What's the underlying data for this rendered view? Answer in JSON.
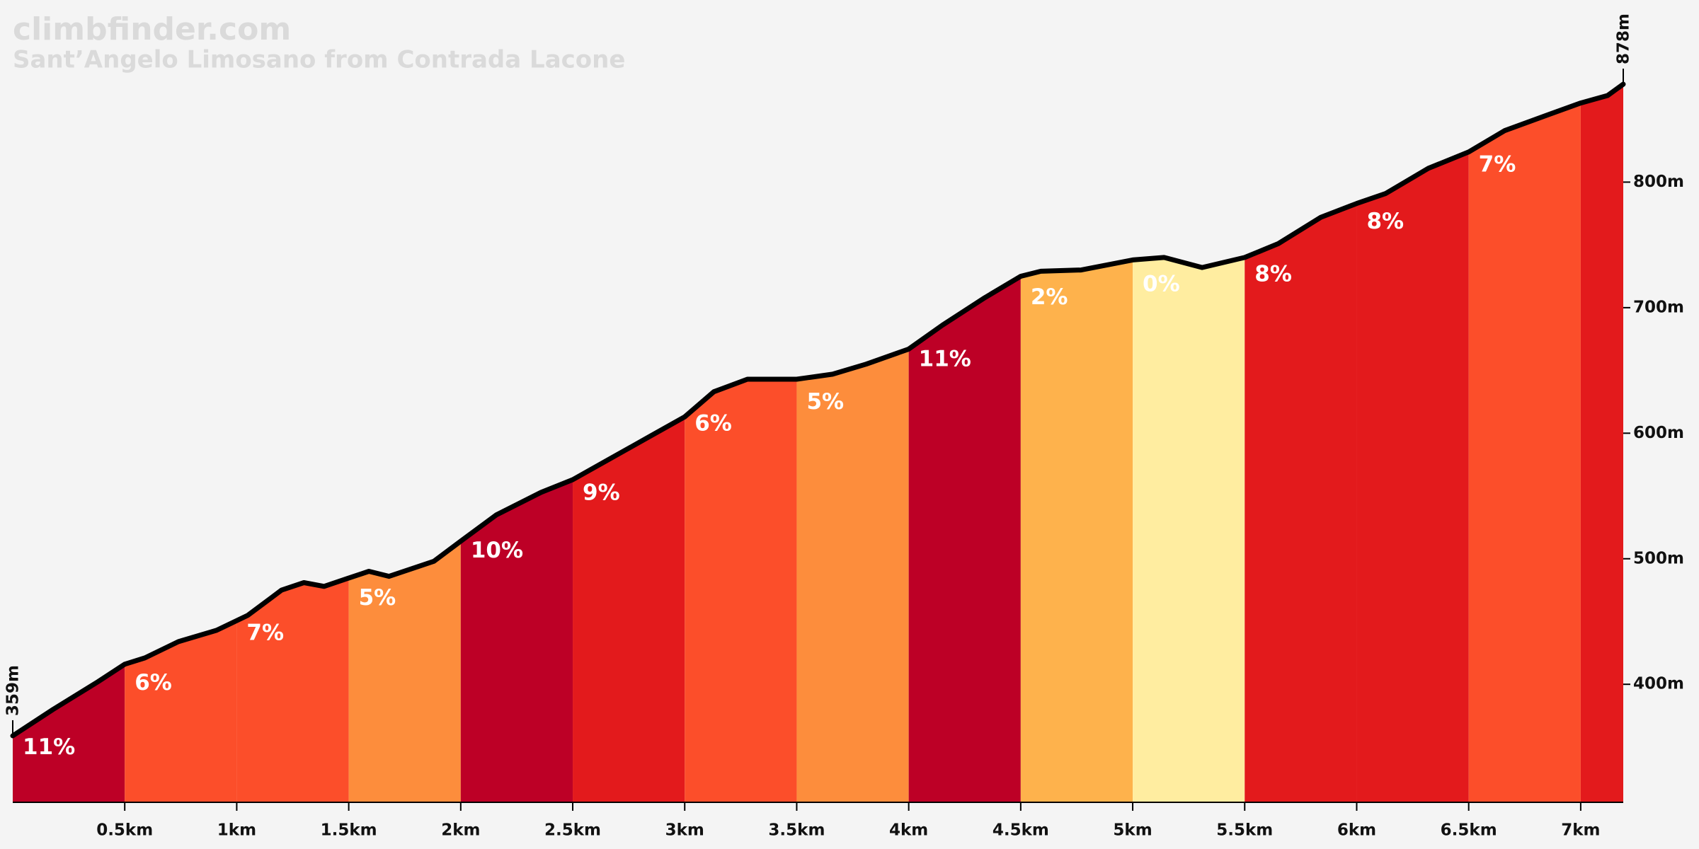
{
  "chart_data": {
    "type": "elevation-profile",
    "title": "climbfinder.com",
    "subtitle": "Sant’Angelo Limosano from Contrada Lacone",
    "x": [
      0,
      0.18,
      0.38,
      0.5,
      0.59,
      0.74,
      0.91,
      1.05,
      1.2,
      1.3,
      1.39,
      1.49,
      1.59,
      1.68,
      1.88,
      2.0,
      2.16,
      2.36,
      2.5,
      2.65,
      2.84,
      3.0,
      3.13,
      3.28,
      3.5,
      3.66,
      3.81,
      4.0,
      4.15,
      4.34,
      4.5,
      4.59,
      4.77,
      5.0,
      5.14,
      5.31,
      5.5,
      5.65,
      5.84,
      6.0,
      6.13,
      6.32,
      6.5,
      6.66,
      6.86,
      7.0,
      7.12,
      7.19
    ],
    "values": [
      359,
      380,
      402,
      416,
      421,
      434,
      443,
      455,
      475,
      481,
      478,
      484,
      490,
      486,
      498,
      514,
      535,
      553,
      563,
      578,
      597,
      613,
      633,
      643,
      643,
      647,
      655,
      667,
      686,
      708,
      725,
      729,
      730,
      738,
      740,
      732,
      740,
      751,
      772,
      783,
      791,
      811,
      824,
      841,
      854,
      863,
      869,
      878
    ],
    "segments": {
      "bins": [
        0,
        0.5,
        1,
        1.5,
        2,
        2.5,
        3,
        3.5,
        4,
        4.5,
        5,
        5.5,
        6,
        6.5,
        7,
        7.19
      ],
      "values": [
        11,
        6,
        7,
        5,
        10,
        9,
        6,
        5,
        11,
        2,
        0,
        8,
        8,
        7,
        null
      ],
      "value_labels": [
        "11%",
        "6%",
        "7%",
        "5%",
        "10%",
        "9%",
        "6%",
        "5%",
        "11%",
        "2%",
        "0%",
        "8%",
        "8%",
        "7%",
        null
      ],
      "colors": [
        "#bd0026",
        "#fc4e2a",
        "#fc4e2a",
        "#fd8d3c",
        "#bd0026",
        "#e31a1c",
        "#fc4e2a",
        "#fd8d3c",
        "#bd0026",
        "#feb24c",
        "#ffeda0",
        "#e31a1c",
        "#e31a1c",
        "#fc4e2a",
        "#e31a1c"
      ]
    },
    "annotations": [
      {
        "text": "359m",
        "value": 359
      },
      {
        "text": "878m",
        "value": 878
      }
    ],
    "xlim": [
      0,
      7.19
    ],
    "ylim": [
      306,
      878
    ],
    "xticks": [
      {
        "value": 0.5,
        "label": "0.5km"
      },
      {
        "value": 1,
        "label": "1km"
      },
      {
        "value": 1.5,
        "label": "1.5km"
      },
      {
        "value": 2,
        "label": "2km"
      },
      {
        "value": 2.5,
        "label": "2.5km"
      },
      {
        "value": 3,
        "label": "3km"
      },
      {
        "value": 3.5,
        "label": "3.5km"
      },
      {
        "value": 4,
        "label": "4km"
      },
      {
        "value": 4.5,
        "label": "4.5km"
      },
      {
        "value": 5,
        "label": "5km"
      },
      {
        "value": 5.5,
        "label": "5.5km"
      },
      {
        "value": 6,
        "label": "6km"
      },
      {
        "value": 6.5,
        "label": "6.5km"
      },
      {
        "value": 7,
        "label": "7km"
      }
    ],
    "yticks": [
      {
        "value": 400,
        "label": "400m"
      },
      {
        "value": 500,
        "label": "500m"
      },
      {
        "value": 600,
        "label": "600m"
      },
      {
        "value": 700,
        "label": "700m"
      },
      {
        "value": 800,
        "label": "800m"
      }
    ]
  }
}
